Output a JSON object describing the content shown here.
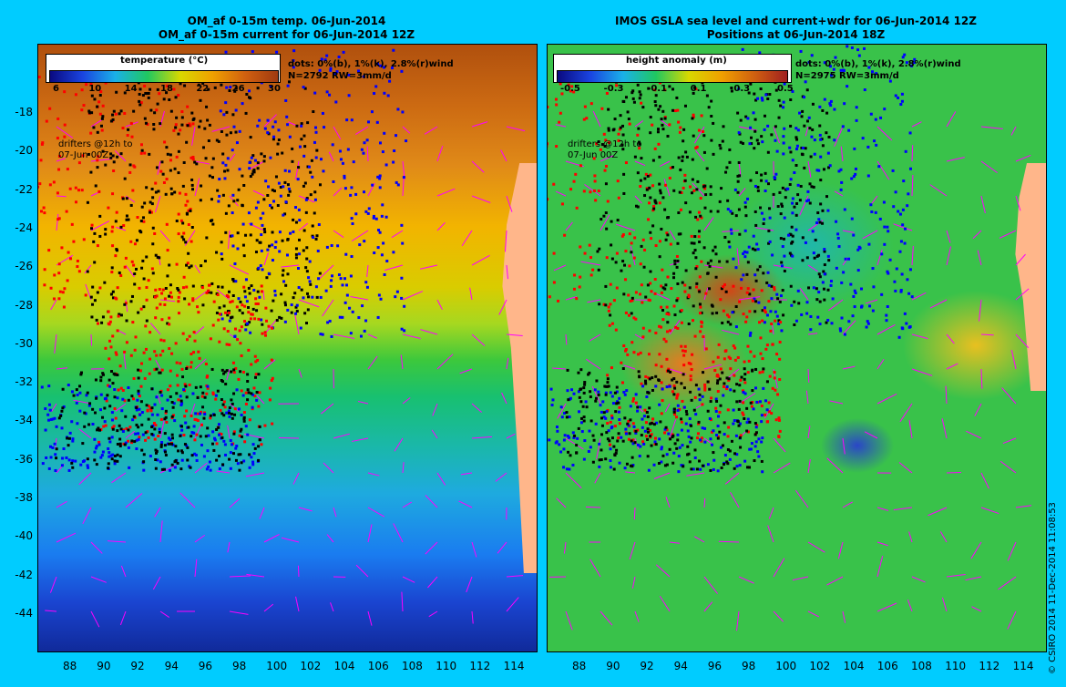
{
  "left_panel": {
    "title_line1": "OM_af 0-15m temp. 06-Jun-2014",
    "title_line2": "OM_af 0-15m current for 06-Jun-2014 12Z",
    "colorbar_label": "temperature (°C)",
    "colorbar_ticks": [
      "6",
      "10",
      "14",
      "18",
      "22",
      "26",
      "30"
    ],
    "dots_legend": "dots: 0%(b), 1%(k), 2.8%(r)wind",
    "stats": "N=2792 RW=3mm/d",
    "drifter_note_line1": "drifters @12h to",
    "drifter_note_line2": "07-Jun 00Z"
  },
  "right_panel": {
    "title_line1": "IMOS GSLA sea level and current+wdr for 06-Jun-2014 12Z",
    "title_line2": "Positions at 06-Jun-2014 18Z",
    "colorbar_label": "height anomaly (m)",
    "colorbar_ticks": [
      "-0.5",
      "-0.3",
      "-0.1",
      "0.1",
      "0.3",
      "0.5"
    ],
    "dots_legend": "dots: 0%(b), 1%(k), 2.8%(r)wind",
    "stats": "N=2975 RW=3mm/d",
    "drifter_note_line1": "drifters @12h to",
    "drifter_note_line2": "07-Jun 00Z"
  },
  "latitude_ticks": [
    "-18",
    "-20",
    "-22",
    "-24",
    "-26",
    "-28",
    "-30",
    "-32",
    "-34",
    "-36",
    "-38",
    "-40",
    "-42",
    "-44"
  ],
  "longitude_ticks": [
    "88",
    "90",
    "92",
    "94",
    "96",
    "98",
    "100",
    "102",
    "104",
    "106",
    "108",
    "110",
    "112",
    "114"
  ],
  "copyright": "© CSIRO 2014   11-Dec-2014 11:08:53",
  "colors": {
    "background": "#00ccff",
    "land": "#ffb68a",
    "drifter_blue": "#0000ff",
    "drifter_black": "#000000",
    "drifter_red": "#ff0000",
    "current_vectors": "#ff00ff"
  }
}
